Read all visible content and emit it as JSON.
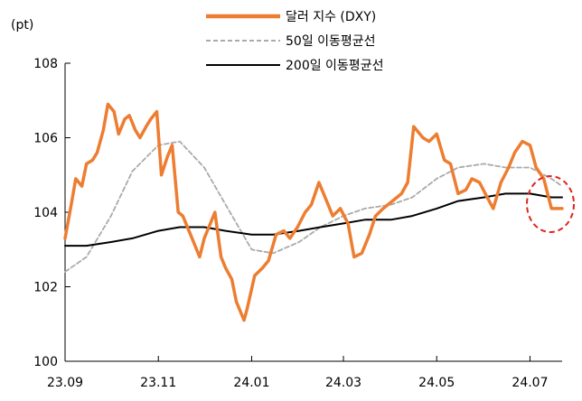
{
  "chart_data": {
    "type": "line",
    "title": "",
    "xlabel": "",
    "ylabel": "(pt)",
    "ylim": [
      100,
      108
    ],
    "yticks": [
      100,
      102,
      104,
      106,
      108
    ],
    "xticks": [
      "23.09",
      "23.11",
      "24.01",
      "24.03",
      "24.05",
      "24.07"
    ],
    "xlim": [
      "2023-09-01",
      "2024-07-22"
    ],
    "grid": false,
    "legend_position": "top-center",
    "annotation": "red-dashed-circle around latest values",
    "series": [
      {
        "name": "달러 지수 (DXY)",
        "color": "#ED7D31",
        "style": "solid-thick",
        "x": [
          "2023-09-01",
          "2023-09-05",
          "2023-09-08",
          "2023-09-12",
          "2023-09-15",
          "2023-09-19",
          "2023-09-22",
          "2023-09-26",
          "2023-09-29",
          "2023-10-03",
          "2023-10-06",
          "2023-10-10",
          "2023-10-13",
          "2023-10-17",
          "2023-10-20",
          "2023-10-24",
          "2023-10-27",
          "2023-10-31",
          "2023-11-03",
          "2023-11-07",
          "2023-11-10",
          "2023-11-14",
          "2023-11-17",
          "2023-11-21",
          "2023-11-24",
          "2023-11-28",
          "2023-12-01",
          "2023-12-05",
          "2023-12-08",
          "2023-12-12",
          "2023-12-15",
          "2023-12-19",
          "2023-12-22",
          "2023-12-27",
          "2023-12-29",
          "2024-01-03",
          "2024-01-08",
          "2024-01-12",
          "2024-01-17",
          "2024-01-22",
          "2024-01-26",
          "2024-01-31",
          "2024-02-05",
          "2024-02-09",
          "2024-02-14",
          "2024-02-19",
          "2024-02-23",
          "2024-02-28",
          "2024-03-04",
          "2024-03-08",
          "2024-03-13",
          "2024-03-18",
          "2024-03-22",
          "2024-03-27",
          "2024-04-02",
          "2024-04-08",
          "2024-04-12",
          "2024-04-16",
          "2024-04-22",
          "2024-04-26",
          "2024-05-01",
          "2024-05-06",
          "2024-05-10",
          "2024-05-15",
          "2024-05-20",
          "2024-05-24",
          "2024-05-29",
          "2024-06-03",
          "2024-06-07",
          "2024-06-12",
          "2024-06-17",
          "2024-06-21",
          "2024-06-26",
          "2024-07-01",
          "2024-07-05",
          "2024-07-10",
          "2024-07-15",
          "2024-07-18",
          "2024-07-22"
        ],
        "values": [
          103.3,
          104.2,
          104.9,
          104.7,
          105.3,
          105.4,
          105.6,
          106.2,
          106.9,
          106.7,
          106.1,
          106.5,
          106.6,
          106.2,
          106.0,
          106.3,
          106.5,
          106.7,
          105.0,
          105.5,
          105.8,
          104.0,
          103.9,
          103.5,
          103.2,
          102.8,
          103.3,
          103.7,
          104.0,
          102.8,
          102.5,
          102.2,
          101.6,
          101.1,
          101.4,
          102.3,
          102.5,
          102.7,
          103.4,
          103.5,
          103.3,
          103.6,
          104.0,
          104.2,
          104.8,
          104.3,
          103.9,
          104.1,
          103.7,
          102.8,
          102.9,
          103.4,
          103.9,
          104.1,
          104.3,
          104.5,
          104.8,
          106.3,
          106.0,
          105.9,
          106.1,
          105.4,
          105.3,
          104.5,
          104.6,
          104.9,
          104.8,
          104.4,
          104.1,
          104.8,
          105.2,
          105.6,
          105.9,
          105.8,
          105.2,
          104.9,
          104.1,
          104.1,
          104.1
        ]
      },
      {
        "name": "50일 이동평균선",
        "color": "#AAAAAA",
        "style": "dashed",
        "x": [
          "2023-09-01",
          "2023-09-15",
          "2023-10-01",
          "2023-10-15",
          "2023-11-01",
          "2023-11-15",
          "2023-12-01",
          "2023-12-15",
          "2024-01-01",
          "2024-01-15",
          "2024-02-01",
          "2024-02-15",
          "2024-03-01",
          "2024-03-15",
          "2024-04-01",
          "2024-04-15",
          "2024-05-01",
          "2024-05-15",
          "2024-06-01",
          "2024-06-15",
          "2024-07-01",
          "2024-07-15",
          "2024-07-22"
        ],
        "values": [
          102.4,
          102.8,
          103.9,
          105.1,
          105.8,
          105.9,
          105.2,
          104.2,
          103.0,
          102.9,
          103.2,
          103.6,
          103.9,
          104.1,
          104.2,
          104.4,
          104.9,
          105.2,
          105.3,
          105.2,
          105.2,
          104.9,
          104.7
        ]
      },
      {
        "name": "200일 이동평균선",
        "color": "#000000",
        "style": "solid",
        "x": [
          "2023-09-01",
          "2023-09-15",
          "2023-10-01",
          "2023-10-15",
          "2023-11-01",
          "2023-11-15",
          "2023-12-01",
          "2023-12-15",
          "2024-01-01",
          "2024-01-15",
          "2024-02-01",
          "2024-02-15",
          "2024-03-01",
          "2024-03-15",
          "2024-04-01",
          "2024-04-15",
          "2024-05-01",
          "2024-05-15",
          "2024-06-01",
          "2024-06-15",
          "2024-07-01",
          "2024-07-15",
          "2024-07-22"
        ],
        "values": [
          103.1,
          103.1,
          103.2,
          103.3,
          103.5,
          103.6,
          103.6,
          103.5,
          103.4,
          103.4,
          103.5,
          103.6,
          103.7,
          103.8,
          103.8,
          103.9,
          104.1,
          104.3,
          104.4,
          104.5,
          104.5,
          104.4,
          104.4
        ]
      }
    ]
  }
}
